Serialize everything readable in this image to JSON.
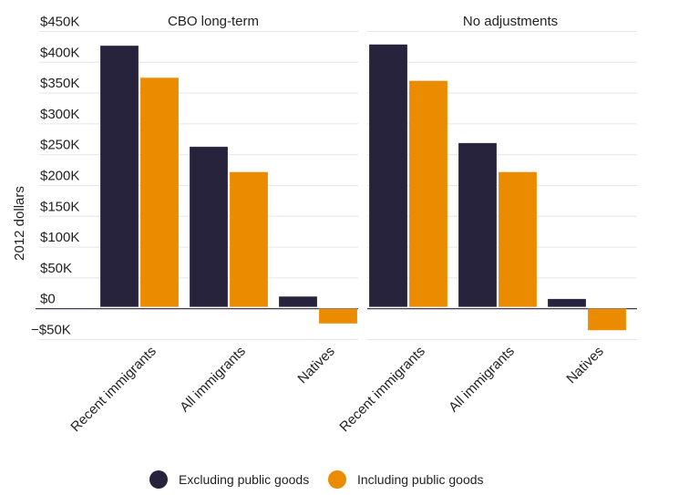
{
  "chart_data": {
    "type": "bar",
    "ylabel": "2012 dollars",
    "ylim": [
      -50000,
      450000
    ],
    "yticks": [
      -50000,
      0,
      50000,
      100000,
      150000,
      200000,
      250000,
      300000,
      350000,
      400000,
      450000
    ],
    "ytick_labels": [
      "−$50K",
      "$0",
      "$50K",
      "$100K",
      "$150K",
      "$200K",
      "$250K",
      "$300K",
      "$350K",
      "$400K",
      "$450K"
    ],
    "grid": true,
    "legend_position": "bottom",
    "categories": [
      "Recent immigrants",
      "All immigrants",
      "Natives"
    ],
    "colors": {
      "Excluding public goods": "#28233d",
      "Including public goods": "#eb8b00"
    },
    "panels": [
      {
        "title": "CBO long-term",
        "series": [
          {
            "name": "Excluding public goods",
            "values": [
              427000,
              263000,
              20000
            ]
          },
          {
            "name": "Including public goods",
            "values": [
              375000,
              222000,
              -24000
            ]
          }
        ]
      },
      {
        "title": "No adjustments",
        "series": [
          {
            "name": "Excluding public goods",
            "values": [
              429000,
              269000,
              16000
            ]
          },
          {
            "name": "Including public goods",
            "values": [
              370000,
              222000,
              -35000
            ]
          }
        ]
      }
    ],
    "legend": [
      "Excluding public goods",
      "Including public goods"
    ]
  }
}
